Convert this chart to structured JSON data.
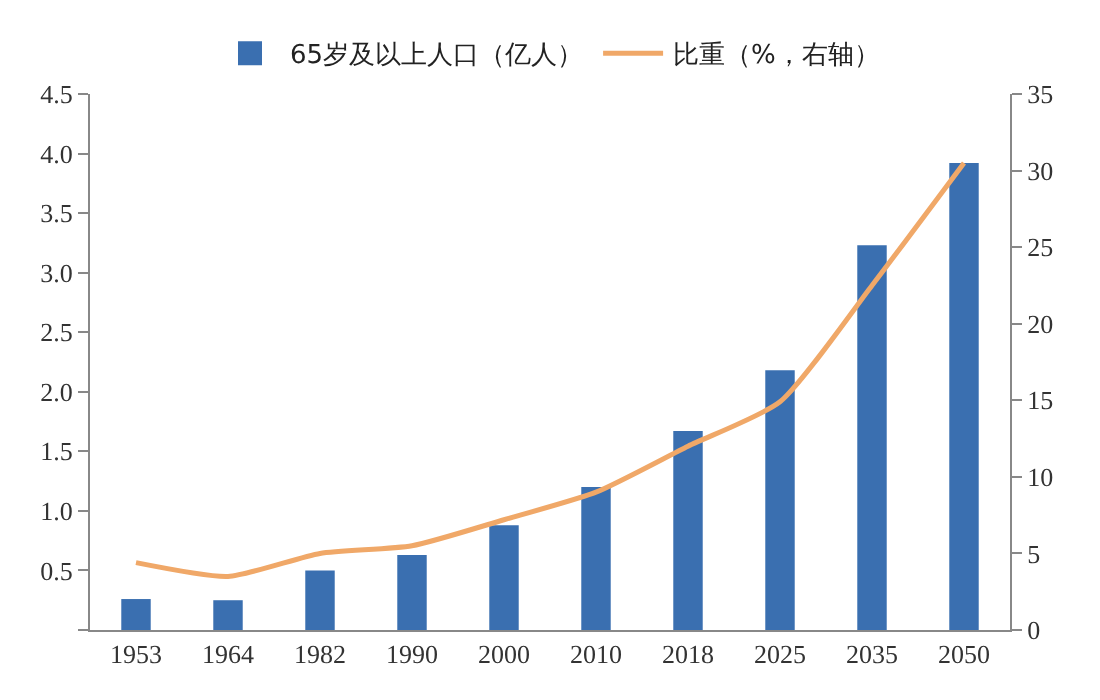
{
  "chart_data": {
    "type": "bar",
    "categories": [
      "1953",
      "1964",
      "1982",
      "1990",
      "2000",
      "2010",
      "2018",
      "2025",
      "2035",
      "2050"
    ],
    "series": [
      {
        "name": "65岁及以上人口（亿人）",
        "color": "#3a6fb0",
        "values": [
          0.26,
          0.25,
          0.5,
          0.63,
          0.88,
          1.2,
          1.67,
          2.18,
          3.23,
          3.92
        ]
      },
      {
        "name": "比重（%，右轴）",
        "type": "line",
        "axis": "y2",
        "color": "#f0a868",
        "values": [
          4.4,
          3.5,
          5.0,
          5.5,
          7.2,
          9.0,
          12.0,
          14.9,
          22.5,
          30.5
        ]
      }
    ],
    "ylim": [
      0,
      4.5
    ],
    "yticks": [
      {
        "value": 0,
        "label": null
      },
      0.5,
      {
        "value": 1,
        "label": "1.0"
      },
      1.5,
      {
        "value": 2,
        "label": "2.0"
      },
      2.5,
      {
        "value": 3,
        "label": "3.0"
      },
      3.5,
      {
        "value": 4,
        "label": "4.0"
      },
      4.5
    ],
    "y2lim": [
      0,
      35
    ],
    "y2ticks": [
      0,
      5,
      10,
      15,
      20,
      25,
      30,
      35
    ],
    "grid": false,
    "legend": "top",
    "marker": "none",
    "line_style": "solid"
  }
}
